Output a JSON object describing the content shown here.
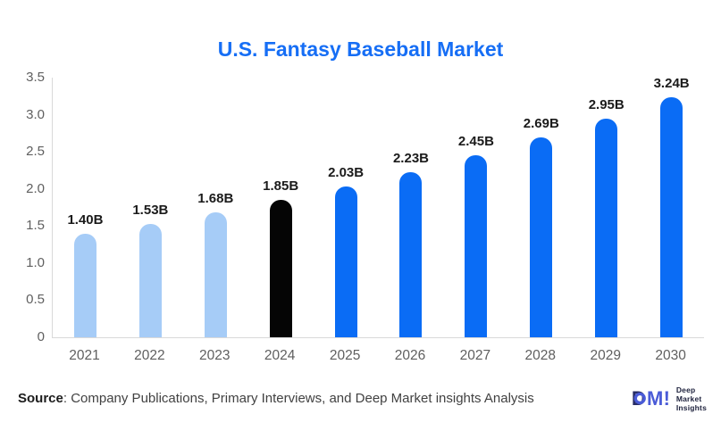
{
  "page": {
    "background": "#ffffff"
  },
  "title": {
    "text": "U.S. Fantasy Baseball Market",
    "color": "#166ef5"
  },
  "chart_data": {
    "type": "bar",
    "title": "U.S. Fantasy Baseball Market",
    "categories": [
      "2021",
      "2022",
      "2023",
      "2024",
      "2025",
      "2026",
      "2027",
      "2028",
      "2029",
      "2030"
    ],
    "values": [
      1.4,
      1.53,
      1.68,
      1.85,
      2.03,
      2.23,
      2.45,
      2.69,
      2.95,
      3.24
    ],
    "bar_labels": [
      "1.40B",
      "1.53B",
      "1.68B",
      "1.85B",
      "2.03B",
      "2.23B",
      "2.45B",
      "2.69B",
      "2.95B",
      "3.24B"
    ],
    "bar_colors": [
      "#a6ccf7",
      "#a6ccf7",
      "#a6ccf7",
      "#050505",
      "#0a6cf5",
      "#0a6cf5",
      "#0a6cf5",
      "#0a6cf5",
      "#0a6cf5",
      "#0a6cf5"
    ],
    "y_ticks": [
      "3.5",
      "3.0",
      "2.5",
      "2.0",
      "1.5",
      "1.0",
      "0.5",
      "0"
    ],
    "y_tick_values": [
      3.5,
      3.0,
      2.5,
      2.0,
      1.5,
      1.0,
      0.5,
      0
    ],
    "ylim": [
      0,
      3.5
    ],
    "xlabel": "",
    "ylabel": "",
    "grid": false,
    "legend": "none",
    "axis_color": "#d9d9d9",
    "tick_label_color": "#5f5f5f",
    "data_label_color": "#1b1b1b"
  },
  "footer": {
    "source_label": "Source",
    "source_rest": ": Company Publications, Primary Interviews, and Deep Market insights Analysis"
  },
  "logo": {
    "mark_d": "D",
    "mark_m": "M",
    "mark_excl": "!",
    "navy": "#272c66",
    "blue": "#4a5bd7",
    "lines": [
      "Deep",
      "Market",
      "Insights"
    ]
  }
}
